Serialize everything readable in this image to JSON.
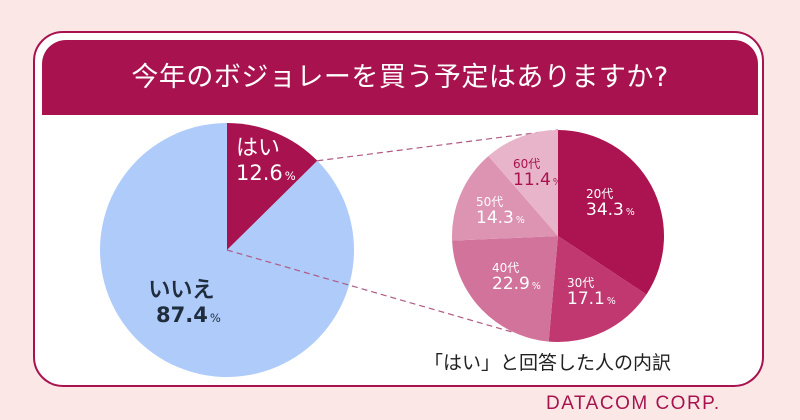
{
  "title": "今年のボジョレーを買う予定はありますか?",
  "subtitle": "「はい」と回答した人の内訳",
  "brand": "DATACOM CORP.",
  "colors": {
    "background": "#fbe8e6",
    "accent": "#a8134f",
    "no": "#aecbfa",
    "dark_text": "#1f2d3d"
  },
  "chart_data": [
    {
      "type": "pie",
      "title": "今年のボジョレーを買う予定はありますか?",
      "categories": [
        "はい",
        "いいえ"
      ],
      "values": [
        12.6,
        87.4
      ],
      "unit": "%",
      "labels": [
        {
          "name": "はい",
          "value": "12.6",
          "unit": "%",
          "color": "#a8134f",
          "text_color": "#ffffff"
        },
        {
          "name": "いいえ",
          "value": "87.4",
          "unit": "%",
          "color": "#aecbfa",
          "text_color": "#1f2d3d"
        }
      ]
    },
    {
      "type": "pie",
      "title": "「はい」と回答した人の内訳",
      "categories": [
        "20代",
        "30代",
        "40代",
        "50代",
        "60代"
      ],
      "values": [
        34.3,
        17.1,
        22.9,
        14.3,
        11.4
      ],
      "unit": "%",
      "labels": [
        {
          "name": "20代",
          "value": "34.3",
          "unit": "%",
          "color": "#ab1450",
          "text_color": "#ffffff"
        },
        {
          "name": "30代",
          "value": "17.1",
          "unit": "%",
          "color": "#c0386f",
          "text_color": "#ffffff"
        },
        {
          "name": "40代",
          "value": "22.9",
          "unit": "%",
          "color": "#d1739a",
          "text_color": "#ffffff"
        },
        {
          "name": "50代",
          "value": "14.3",
          "unit": "%",
          "color": "#dd93b2",
          "text_color": "#ffffff"
        },
        {
          "name": "60代",
          "value": "11.4",
          "unit": "%",
          "color": "#e8b4c9",
          "text_color": "#a8134f"
        }
      ]
    }
  ]
}
